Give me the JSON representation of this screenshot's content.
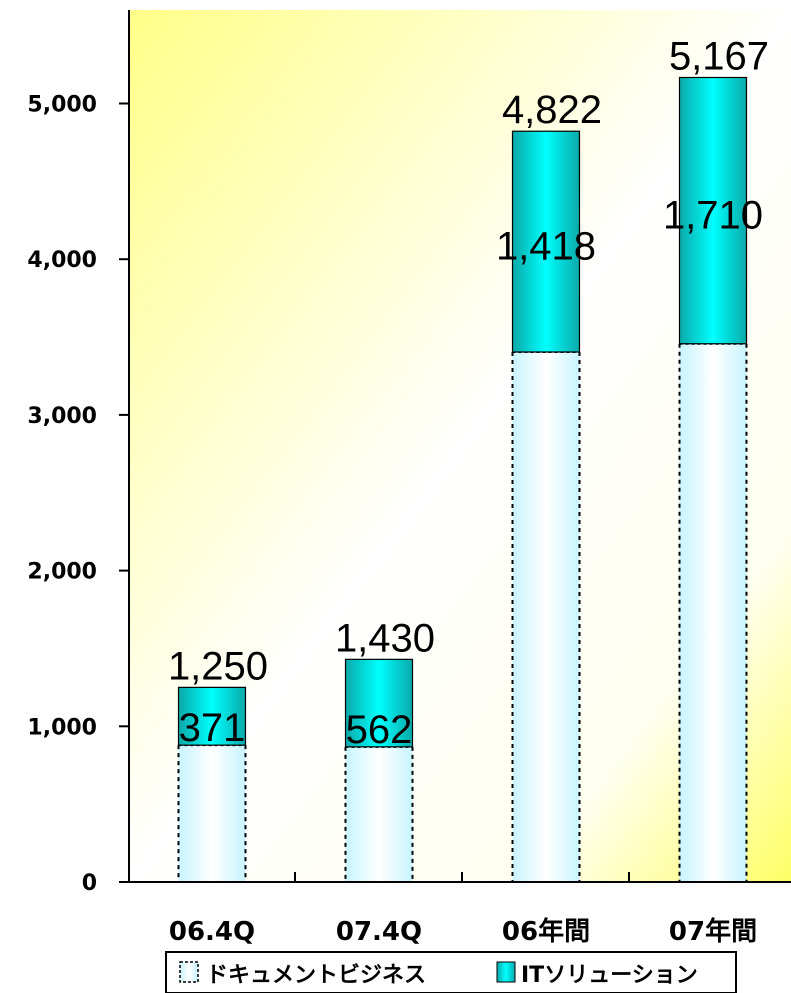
{
  "chart_data": {
    "type": "bar",
    "stacked": true,
    "categories": [
      "06.4Q",
      "07.4Q",
      "06年間",
      "07年間"
    ],
    "series": [
      {
        "name": "ドキュメントビジネス",
        "values": [
          879,
          868,
          3404,
          3457
        ],
        "color": "#e8fcff",
        "labels_shown": false
      },
      {
        "name": "ITソリューション",
        "values": [
          371,
          562,
          1418,
          1710
        ],
        "color": "#12c8c8",
        "labels_shown": true
      }
    ],
    "totals": [
      1250,
      1430,
      4822,
      5167
    ],
    "totals_text": [
      "1,250",
      "1,430",
      "4,822",
      "5,167"
    ],
    "segment_text": [
      "371",
      "562",
      "1,418",
      "1,710"
    ],
    "y_ticks": [
      0,
      1000,
      2000,
      3000,
      4000,
      5000
    ],
    "y_tick_labels": [
      "0",
      "1,000",
      "2,000",
      "3,000",
      "4,000",
      "5,000"
    ],
    "ylim": [
      0,
      5600
    ],
    "grid": false,
    "legend_position": "bottom",
    "background": {
      "from": "#ffff99",
      "to": "#ffffff"
    }
  }
}
